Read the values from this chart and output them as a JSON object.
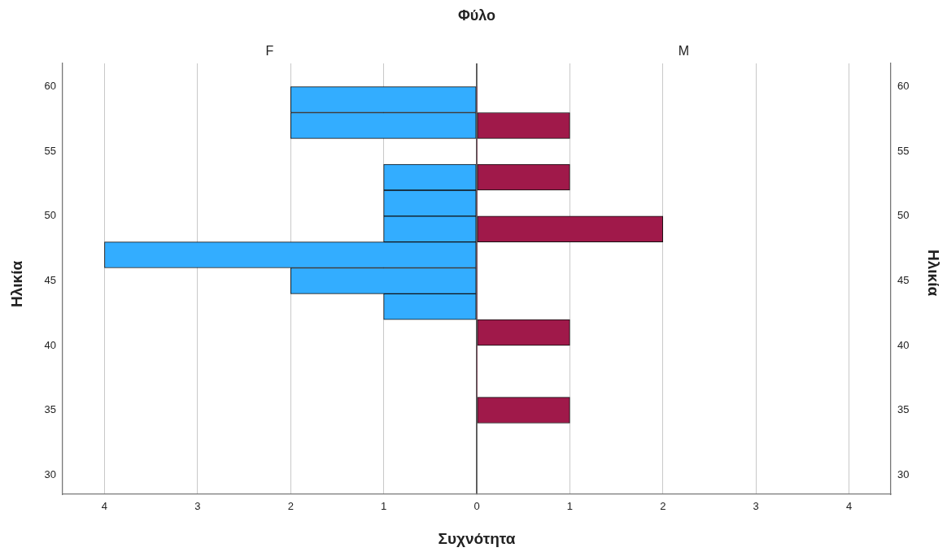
{
  "chart_data": [
    {
      "type": "histogram",
      "orientation": "horizontal",
      "title": "F",
      "xlabel": "Συχνότητα",
      "ylabel": "Ηλικία",
      "annotations": [
        "Φύλο"
      ],
      "bins": [
        34,
        36,
        38,
        40,
        42,
        44,
        46,
        48,
        50,
        52,
        54,
        56,
        58,
        60
      ],
      "values": [
        0,
        0,
        0,
        0,
        1,
        2,
        4,
        1,
        1,
        1,
        0,
        2,
        2
      ],
      "color": "#33adff",
      "xlim": [
        4.45,
        0
      ],
      "xticks": [
        4,
        3,
        2,
        1,
        {
          "value": 0,
          "label": null
        }
      ],
      "ylim": [
        28.5,
        61.8
      ],
      "yticks": [
        30,
        35,
        40,
        45,
        50,
        55,
        60
      ],
      "grid": "x"
    },
    {
      "type": "histogram",
      "orientation": "horizontal",
      "title": "M",
      "ylabel": "Ηλικία",
      "bins": [
        34,
        36,
        38,
        40,
        42,
        44,
        46,
        48,
        50,
        52,
        54,
        56,
        58,
        60
      ],
      "values": [
        1,
        0,
        0,
        1,
        0,
        0,
        0,
        2,
        0,
        1,
        0,
        1,
        0
      ],
      "color": "#a0194a",
      "xlim": [
        0,
        4.45
      ],
      "xticks": [
        0,
        1,
        2,
        3,
        4
      ],
      "ylim": [
        28.5,
        61.8
      ],
      "yticks": [
        30,
        35,
        40,
        45,
        50,
        55,
        60
      ],
      "grid": "x"
    }
  ]
}
